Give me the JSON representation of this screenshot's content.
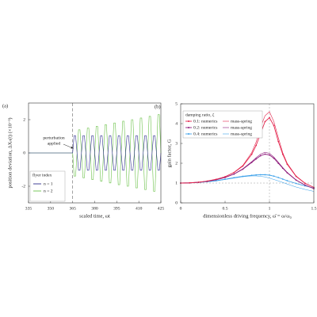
{
  "chart_data": [
    {
      "type": "line",
      "panel_label": "(a)",
      "xlabel": "scaled time, ωt",
      "ylabel": "position deviation, ΔXₙ(t) (×10⁻³)",
      "xlim": [
        335,
        425
      ],
      "xticks": [
        335,
        350,
        365,
        380,
        395,
        410,
        425
      ],
      "ylim": [
        -3,
        3
      ],
      "yticks": [
        -2,
        0,
        2
      ],
      "vline": 365,
      "annotation": [
        "perturbation",
        "applied"
      ],
      "legend_title": "flyer index",
      "legend": "lower left",
      "x": [
        335,
        365,
        366,
        367,
        368,
        369,
        370,
        371,
        372,
        373,
        374,
        375,
        376,
        377,
        378,
        379,
        380,
        381,
        382,
        383,
        384,
        385,
        386,
        387,
        388,
        389,
        390,
        391,
        392,
        393,
        394,
        395,
        396,
        397,
        398,
        399,
        400,
        401,
        402,
        403,
        404,
        405,
        406,
        407,
        408,
        409,
        410,
        411,
        412,
        413,
        414,
        415,
        416,
        417,
        418,
        419,
        420,
        421,
        422,
        423,
        424,
        425
      ],
      "series": [
        {
          "name": "n = 1",
          "color": "#2e2e8f",
          "values": [
            0,
            0,
            1.04,
            1.04,
            0,
            -1.04,
            -1.04,
            0,
            1.04,
            1.04,
            0,
            -1.04,
            -1.04,
            0,
            1.04,
            1.04,
            0,
            -1.04,
            -1.04,
            0,
            1.04,
            1.04,
            0,
            -1.04,
            -1.04,
            0,
            1.04,
            1.04,
            0,
            -1.04,
            -1.04,
            0,
            1.04,
            1.04,
            0,
            -1.04,
            -1.04,
            0,
            1.04,
            1.04,
            0,
            -1.04,
            -1.04,
            0,
            1.04,
            1.04,
            0,
            -1.04,
            -1.04,
            0,
            1.04,
            1.04,
            0,
            -1.04,
            -1.04,
            0,
            1.04,
            1.04,
            0,
            -1.04,
            -1.04,
            0
          ]
        },
        {
          "name": "n = 2",
          "color": "#6cc24a",
          "values": [
            0,
            0,
            -1.39,
            -1.39,
            0,
            1.39,
            1.39,
            0,
            -1.49,
            -1.49,
            0,
            1.49,
            1.49,
            0,
            -1.6,
            -1.6,
            0,
            1.6,
            1.6,
            0,
            -1.7,
            -1.7,
            0,
            1.7,
            1.7,
            0,
            -1.8,
            -1.8,
            0,
            1.8,
            1.8,
            0,
            -1.91,
            -1.91,
            0,
            1.91,
            1.91,
            0,
            -2.0,
            -2.0,
            0,
            2.0,
            2.0,
            0,
            -2.1,
            -2.1,
            0,
            2.1,
            2.1,
            0,
            -2.2,
            -2.2,
            0,
            2.2,
            2.2,
            0,
            -2.3,
            -2.3,
            0,
            2.3,
            2.3,
            0
          ]
        }
      ]
    },
    {
      "type": "line",
      "panel_label": "(b)",
      "xlabel": "dimensionless driving frequency, ω̄ = ω/ω₀",
      "ylabel": "gain factor, G",
      "xlim": [
        0,
        1.5
      ],
      "xticks": [
        0,
        0.5,
        1,
        1.5
      ],
      "ylim": [
        0,
        5
      ],
      "yticks": [
        0,
        1,
        2,
        3,
        4,
        5
      ],
      "reference_lines": {
        "x": 1,
        "y": 1
      },
      "legend_title": "damping ratio, ζ",
      "legend": "upper left",
      "x": [
        0,
        0.1,
        0.2,
        0.3,
        0.4,
        0.5,
        0.6,
        0.7,
        0.8,
        0.85,
        0.9,
        0.95,
        1,
        1.05,
        1.1,
        1.15,
        1.2,
        1.3,
        1.4,
        1.5
      ],
      "series": [
        {
          "name": "0.1: numerics",
          "color": "#e3244c",
          "marker": true,
          "values": [
            1,
            1.01,
            1.04,
            1.1,
            1.19,
            1.32,
            1.53,
            1.86,
            2.45,
            2.9,
            3.5,
            4.1,
            4.3,
            3.9,
            3.1,
            2.45,
            1.95,
            1.34,
            0.99,
            0.78
          ]
        },
        {
          "name": "mass-spring",
          "color": "#e3244c",
          "values": [
            1,
            1.01,
            1.04,
            1.1,
            1.19,
            1.32,
            1.54,
            1.89,
            2.54,
            3.07,
            3.82,
            4.4,
            4.6,
            4.1,
            3.29,
            2.53,
            2.0,
            1.36,
            1.0,
            0.78
          ]
        },
        {
          "name": "0.2: numerics",
          "color": "#8e1c7c",
          "marker": true,
          "values": [
            1,
            1.01,
            1.04,
            1.09,
            1.17,
            1.28,
            1.45,
            1.7,
            2.04,
            2.22,
            2.38,
            2.46,
            2.42,
            2.25,
            2.0,
            1.75,
            1.52,
            1.15,
            0.9,
            0.72
          ]
        },
        {
          "name": "mass-spring",
          "color": "#8e1c7c",
          "values": [
            1,
            1.01,
            1.04,
            1.09,
            1.17,
            1.29,
            1.46,
            1.72,
            2.08,
            2.28,
            2.46,
            2.55,
            2.5,
            2.31,
            2.05,
            1.78,
            1.54,
            1.16,
            0.9,
            0.72
          ]
        },
        {
          "name": "0.4: numerics",
          "color": "#3ea2ea",
          "marker": true,
          "values": [
            1,
            1.01,
            1.03,
            1.07,
            1.12,
            1.19,
            1.27,
            1.34,
            1.39,
            1.41,
            1.42,
            1.42,
            1.4,
            1.35,
            1.28,
            1.2,
            1.12,
            0.98,
            0.86,
            0.75
          ]
        },
        {
          "name": "mass-spring",
          "color": "#3ea2ea",
          "values": [
            1,
            1.01,
            1.03,
            1.06,
            1.11,
            1.18,
            1.25,
            1.32,
            1.36,
            1.36,
            1.34,
            1.31,
            1.25,
            1.18,
            1.11,
            1.03,
            0.95,
            0.8,
            0.68,
            0.58
          ]
        }
      ]
    }
  ]
}
